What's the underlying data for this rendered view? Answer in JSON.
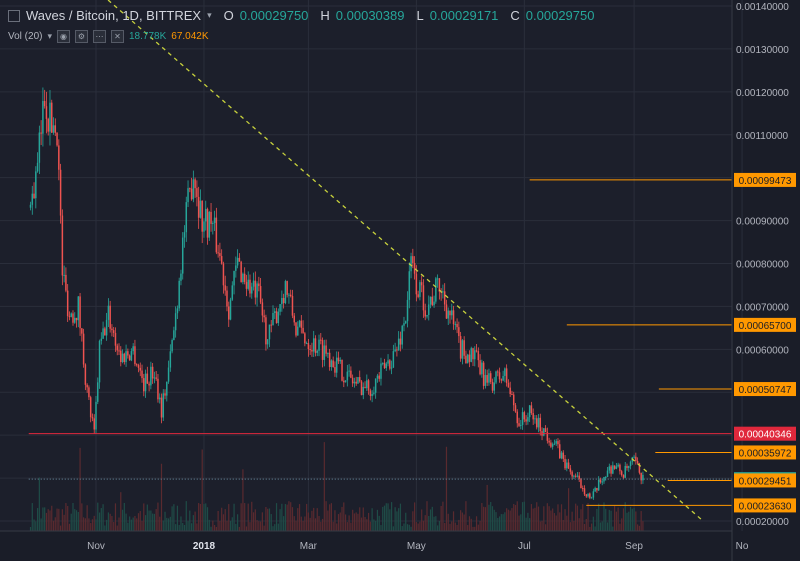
{
  "header": {
    "title": "Waves / Bitcoin, 1D, BITTREX",
    "open_label": "O",
    "open_value": "0.00029750",
    "high_label": "H",
    "high_value": "0.00030389",
    "low_label": "L",
    "low_value": "0.00029171",
    "close_label": "C",
    "close_value": "0.00029750",
    "vol_label": "Vol (20)",
    "vol_value_1": "18.778K",
    "vol_value_2": "67.042K"
  },
  "colors": {
    "background": "#1c1f2b",
    "up": "#26a69a",
    "down": "#ef5350",
    "trendline": "#c8d23c",
    "level": "#ff9800",
    "red_level": "#e0283c",
    "axis_text": "#b2b5be"
  },
  "chart_data": {
    "type": "candlestick",
    "title": "Waves / Bitcoin, 1D, BITTREX",
    "y_ticks": [
      "0.00140000",
      "0.00130000",
      "0.00120000",
      "0.00110000",
      "0.00090000",
      "0.00080000",
      "0.00070000",
      "0.00060000",
      "0.00020000"
    ],
    "ylim": [
      0.0002,
      0.0014
    ],
    "x_ticks": [
      "Nov",
      "2018",
      "Mar",
      "May",
      "Jul",
      "Sep",
      "No"
    ],
    "price_path": [
      [
        "2017-09-25",
        0.00093
      ],
      [
        "2017-09-29",
        0.00102
      ],
      [
        "2017-10-03",
        0.0012
      ],
      [
        "2017-10-06",
        0.00113
      ],
      [
        "2017-10-10",
        0.00112
      ],
      [
        "2017-10-13",
        0.00078
      ],
      [
        "2017-10-17",
        0.00068
      ],
      [
        "2017-10-22",
        0.0007
      ],
      [
        "2017-10-27",
        0.0005
      ],
      [
        "2017-10-31",
        0.0004
      ],
      [
        "2017-11-03",
        0.0006
      ],
      [
        "2017-11-08",
        0.00068
      ],
      [
        "2017-11-15",
        0.00058
      ],
      [
        "2017-11-22",
        0.0006
      ],
      [
        "2017-11-28",
        0.00052
      ],
      [
        "2017-12-04",
        0.00055
      ],
      [
        "2017-12-08",
        0.00046
      ],
      [
        "2017-12-12",
        0.00055
      ],
      [
        "2017-12-16",
        0.00068
      ],
      [
        "2017-12-20",
        0.00085
      ],
      [
        "2017-12-26",
        0.00102
      ],
      [
        "2017-12-31",
        0.0009
      ],
      [
        "2018-01-05",
        0.0009
      ],
      [
        "2018-01-10",
        0.00082
      ],
      [
        "2018-01-15",
        0.0007
      ],
      [
        "2018-01-20",
        0.0008
      ],
      [
        "2018-01-26",
        0.00075
      ],
      [
        "2018-02-01",
        0.00072
      ],
      [
        "2018-02-06",
        0.00062
      ],
      [
        "2018-02-12",
        0.0007
      ],
      [
        "2018-02-16",
        0.00075
      ],
      [
        "2018-02-22",
        0.00065
      ],
      [
        "2018-03-01",
        0.00062
      ],
      [
        "2018-03-10",
        0.0006
      ],
      [
        "2018-03-20",
        0.00055
      ],
      [
        "2018-03-28",
        0.00052
      ],
      [
        "2018-04-05",
        0.00051
      ],
      [
        "2018-04-12",
        0.00055
      ],
      [
        "2018-04-20",
        0.0006
      ],
      [
        "2018-04-25",
        0.00068
      ],
      [
        "2018-04-28",
        0.0008
      ],
      [
        "2018-05-01",
        0.00075
      ],
      [
        "2018-05-07",
        0.0007
      ],
      [
        "2018-05-14",
        0.00075
      ],
      [
        "2018-05-20",
        0.00068
      ],
      [
        "2018-05-26",
        0.0006
      ],
      [
        "2018-06-03",
        0.00058
      ],
      [
        "2018-06-10",
        0.00052
      ],
      [
        "2018-06-20",
        0.00054
      ],
      [
        "2018-06-28",
        0.00043
      ],
      [
        "2018-07-04",
        0.00045
      ],
      [
        "2018-07-12",
        0.00041
      ],
      [
        "2018-07-18",
        0.00038
      ],
      [
        "2018-07-26",
        0.00032
      ],
      [
        "2018-08-03",
        0.00028
      ],
      [
        "2018-08-08",
        0.00025
      ],
      [
        "2018-08-14",
        0.0003
      ],
      [
        "2018-08-20",
        0.00033
      ],
      [
        "2018-08-26",
        0.00031
      ],
      [
        "2018-09-01",
        0.00034
      ],
      [
        "2018-09-06",
        0.000298
      ]
    ],
    "levels": [
      {
        "label": "0.00099473",
        "value": 0.00099473,
        "style": "orange",
        "from": "2018-07-04"
      },
      {
        "label": "0.00065700",
        "value": 0.000657,
        "style": "orange",
        "from": "2018-07-25"
      },
      {
        "label": "0.00050747",
        "value": 0.00050747,
        "style": "orange",
        "from": "2018-09-15"
      },
      {
        "label": "0.00040346",
        "value": 0.00040346,
        "style": "red",
        "from": "2017-09-24"
      },
      {
        "label": "0.00035972",
        "value": 0.00035972,
        "style": "orange",
        "from": "2018-09-13"
      },
      {
        "label": "0.00029750",
        "value": 0.0002975,
        "style": "current",
        "from": "2017-09-24"
      },
      {
        "label": "0.00029451",
        "value": 0.00029451,
        "style": "orange",
        "from": "2018-09-20"
      },
      {
        "label": "0.00023630",
        "value": 0.0002363,
        "style": "orange",
        "from": "2018-08-05"
      }
    ],
    "trendline": [
      [
        "2017-10-15",
        0.0015
      ],
      [
        "2018-10-10",
        0.0002
      ]
    ],
    "grid": true
  }
}
